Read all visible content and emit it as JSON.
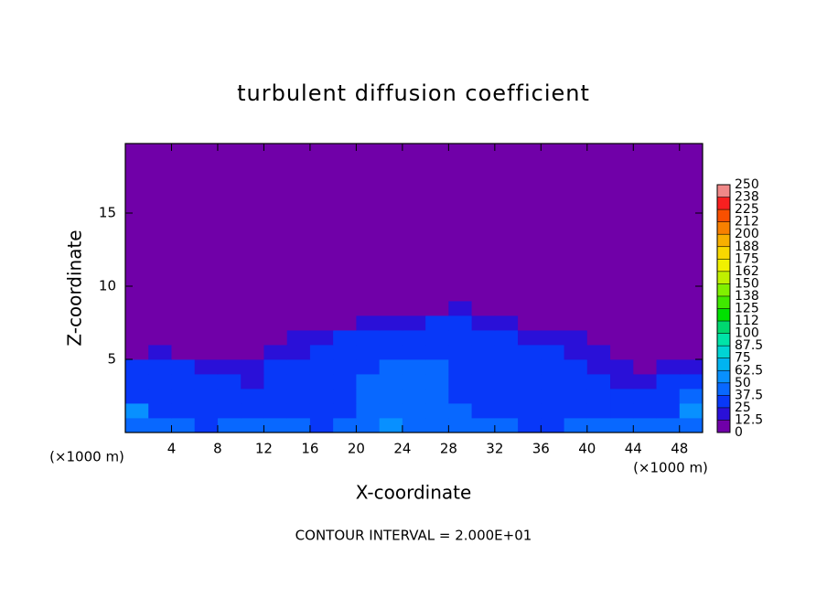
{
  "chart_data": {
    "type": "heatmap",
    "title": "turbulent diffusion coefficient",
    "x_label": "X-coordinate",
    "y_label": "Z-coordinate",
    "x_unit": "(×1000 m)",
    "x_unit_right": "(×1000 m)",
    "footnote": "CONTOUR INTERVAL = 2.000E+01",
    "xlim": [
      0,
      50
    ],
    "ylim": [
      0,
      19.75
    ],
    "xticks": [
      4,
      8,
      12,
      16,
      20,
      24,
      28,
      32,
      36,
      40,
      44,
      48
    ],
    "yticks": [
      5,
      10,
      15
    ],
    "x": [
      1,
      3,
      5,
      7,
      9,
      11,
      13,
      15,
      17,
      19,
      21,
      23,
      25,
      27,
      29,
      31,
      33,
      35,
      37,
      39,
      41,
      43,
      45,
      47,
      49
    ],
    "y": [
      0.5,
      1.5,
      2.5,
      3.5,
      4.5,
      5.5,
      6.5,
      7.5,
      8.5,
      9.5
    ],
    "z": [
      [
        45,
        40,
        40,
        35,
        40,
        40,
        45,
        40,
        35,
        40,
        45,
        50,
        45,
        45,
        40,
        40,
        40,
        35,
        35,
        40,
        40,
        40,
        45,
        40,
        45
      ],
      [
        50,
        35,
        35,
        30,
        35,
        30,
        30,
        30,
        30,
        35,
        40,
        45,
        45,
        45,
        40,
        35,
        35,
        35,
        30,
        30,
        35,
        35,
        30,
        35,
        50
      ],
      [
        35,
        30,
        30,
        25,
        30,
        25,
        25,
        30,
        30,
        35,
        40,
        45,
        45,
        40,
        35,
        30,
        30,
        30,
        25,
        25,
        30,
        30,
        25,
        30,
        40
      ],
      [
        30,
        35,
        30,
        25,
        25,
        20,
        25,
        30,
        30,
        35,
        40,
        45,
        45,
        40,
        35,
        30,
        30,
        30,
        25,
        25,
        25,
        20,
        20,
        25,
        35
      ],
      [
        25,
        30,
        25,
        20,
        15,
        20,
        25,
        30,
        25,
        30,
        35,
        40,
        40,
        40,
        30,
        30,
        30,
        25,
        25,
        25,
        20,
        15,
        10,
        15,
        20
      ],
      [
        10,
        15,
        10,
        5,
        5,
        10,
        15,
        20,
        25,
        30,
        30,
        35,
        35,
        35,
        30,
        30,
        30,
        25,
        25,
        20,
        15,
        5,
        5,
        5,
        10
      ],
      [
        0,
        0,
        0,
        0,
        0,
        0,
        5,
        15,
        20,
        25,
        25,
        30,
        30,
        30,
        25,
        25,
        25,
        20,
        20,
        15,
        10,
        5,
        0,
        0,
        0
      ],
      [
        0,
        0,
        0,
        0,
        0,
        0,
        0,
        0,
        5,
        10,
        15,
        20,
        20,
        25,
        25,
        20,
        15,
        10,
        5,
        0,
        0,
        0,
        0,
        0,
        0
      ],
      [
        0,
        0,
        0,
        0,
        0,
        0,
        0,
        0,
        0,
        0,
        0,
        5,
        10,
        10,
        15,
        5,
        0,
        0,
        0,
        0,
        0,
        0,
        0,
        0,
        0
      ],
      [
        0,
        0,
        0,
        0,
        0,
        0,
        0,
        0,
        0,
        0,
        0,
        0,
        0,
        0,
        0,
        0,
        0,
        0,
        0,
        0,
        0,
        0,
        0,
        0,
        0
      ]
    ],
    "colorbar": {
      "zlim": [
        0,
        250
      ],
      "ticks": [
        0,
        {
          "value": 12.5,
          "label": "12.5"
        },
        25,
        {
          "value": 37.5,
          "label": "37.5"
        },
        50,
        {
          "value": 62.5,
          "label": "62.5"
        },
        75,
        {
          "value": 87.5,
          "label": "87.5"
        },
        100,
        {
          "value": 112.5,
          "label": "112"
        },
        125,
        {
          "value": 137.5,
          "label": "138"
        },
        150,
        {
          "value": 162.5,
          "label": "162"
        },
        175,
        {
          "value": 187.5,
          "label": "188"
        },
        200,
        {
          "value": 212.5,
          "label": "212"
        },
        225,
        {
          "value": 237.5,
          "label": "238"
        },
        250
      ],
      "colors": [
        "#7000a8",
        "#2a10d8",
        "#0838f8",
        "#0868ff",
        "#0890ff",
        "#00b4f0",
        "#00d4d4",
        "#00e4a8",
        "#00d870",
        "#00e000",
        "#40e800",
        "#80f000",
        "#c0f000",
        "#f0f000",
        "#f8d800",
        "#f8b000",
        "#f88000",
        "#f85000",
        "#f82020",
        "#f08888"
      ]
    }
  }
}
